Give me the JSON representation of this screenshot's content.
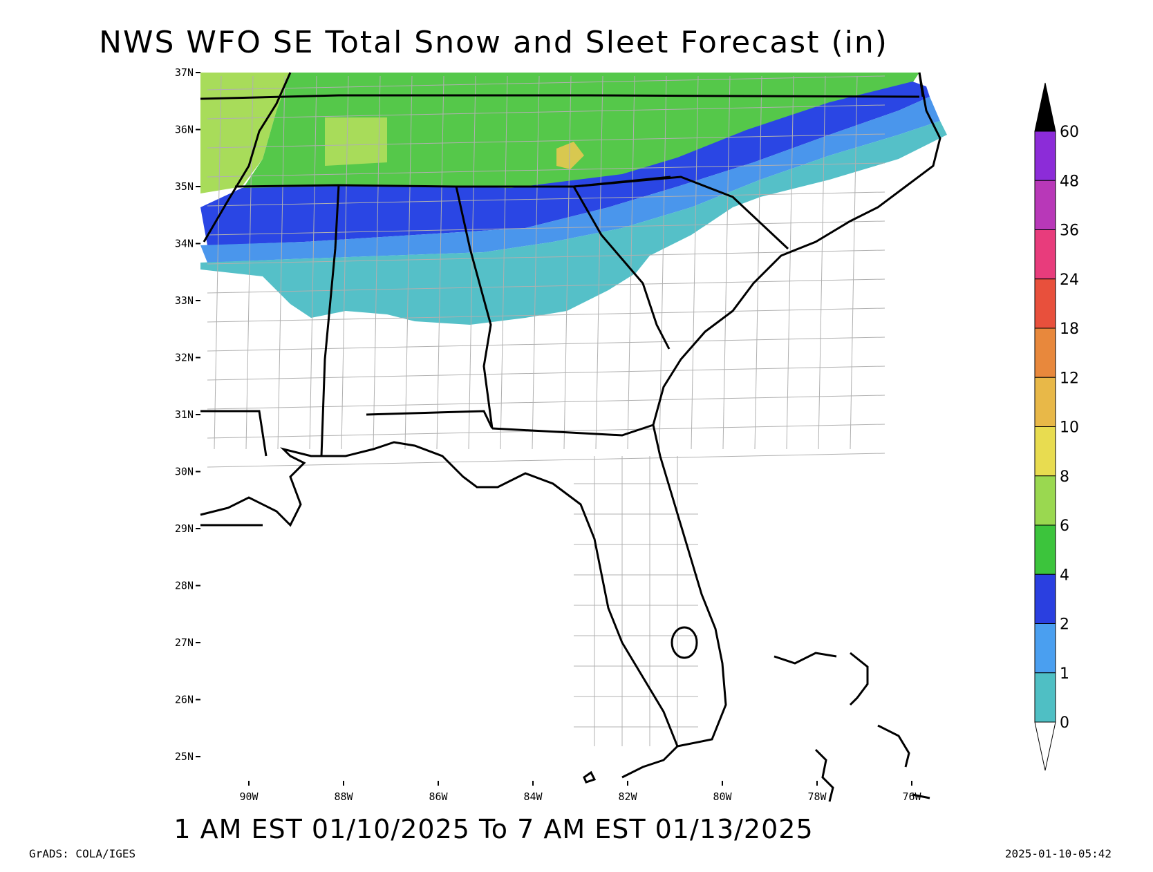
{
  "title": "NWS WFO SE Total Snow and Sleet Forecast (in)",
  "subtitle": "1 AM EST 01/10/2025 To 7 AM EST 01/13/2025",
  "credit": "GrADS: COLA/IGES",
  "timestamp": "2025-01-10-05:42",
  "lat_ticks": [
    "37N",
    "36N",
    "35N",
    "34N",
    "33N",
    "32N",
    "31N",
    "30N",
    "29N",
    "28N",
    "27N",
    "26N",
    "25N"
  ],
  "lon_ticks": [
    "90W",
    "88W",
    "86W",
    "84W",
    "82W",
    "80W",
    "78W",
    "76W"
  ],
  "colorbar": {
    "labels": [
      "0",
      "1",
      "2",
      "4",
      "6",
      "8",
      "10",
      "12",
      "18",
      "24",
      "36",
      "48",
      "60"
    ],
    "colors": [
      "#4fbfc4",
      "#4a9ff0",
      "#2a3fe0",
      "#3cc43c",
      "#9ad850",
      "#e8dc50",
      "#e8b848",
      "#e8883c",
      "#e8503c",
      "#e83c7c",
      "#b838b8",
      "#8c2cd8",
      "#000000"
    ]
  },
  "bands": {
    "green_light": "#a8dc5a",
    "green": "#55c84a",
    "blue_dark": "#2a46e4",
    "blue": "#4a96ec",
    "teal": "#55c0c8",
    "yellow_patch": "#d8c850"
  }
}
